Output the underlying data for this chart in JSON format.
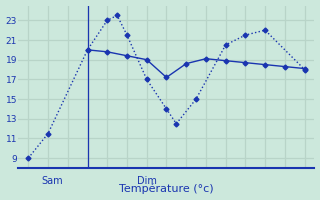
{
  "title": "Température (°c)",
  "background_color": "#cce8dc",
  "grid_color": "#b8d4c8",
  "line_color": "#1a35b0",
  "line1_x": [
    0,
    1,
    3,
    4,
    4.5,
    5,
    6,
    7,
    7.5,
    8.5,
    10,
    11,
    12,
    14
  ],
  "line1_y": [
    9.0,
    11.5,
    20.0,
    23.0,
    23.5,
    21.5,
    17.0,
    14.0,
    12.5,
    15.0,
    20.5,
    21.5,
    22.0,
    18.0
  ],
  "line2_x": [
    3,
    4,
    5,
    6,
    7,
    8,
    9,
    10,
    11,
    12,
    13,
    14
  ],
  "line2_y": [
    20.0,
    19.8,
    19.4,
    19.0,
    17.2,
    18.6,
    19.1,
    18.9,
    18.7,
    18.5,
    18.3,
    18.1
  ],
  "xlim": [
    -0.5,
    14.5
  ],
  "ylim": [
    8.0,
    24.5
  ],
  "yticks": [
    9,
    11,
    13,
    15,
    17,
    19,
    21,
    23
  ],
  "vline_x": 3.0,
  "sam_x": 1.2,
  "dim_x": 6.0,
  "sam_label": "Sam",
  "dim_label": "Dim"
}
